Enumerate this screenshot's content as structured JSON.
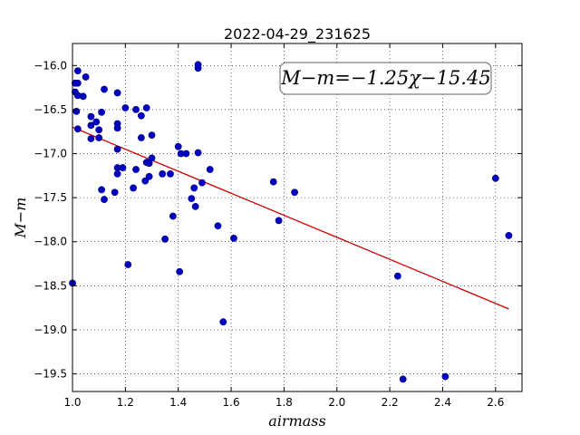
{
  "chart_data": {
    "type": "scatter",
    "title": "2022-04-29_231625",
    "xlabel": "airmass",
    "ylabel": "M−m",
    "annotation": "M−m=−1.25χ−15.45",
    "xlim": [
      1.0,
      2.7
    ],
    "ylim": [
      -19.7,
      -15.75
    ],
    "y_inverted": true,
    "grid": true,
    "grid_style": "dotted",
    "annotation_position": "top-right",
    "x_ticks": [
      1.0,
      1.2,
      1.4,
      1.6,
      1.8,
      2.0,
      2.2,
      2.4,
      2.6
    ],
    "x_tick_labels": [
      "1.0",
      "1.2",
      "1.4",
      "1.6",
      "1.8",
      "2.0",
      "2.2",
      "2.4",
      "2.6"
    ],
    "y_ticks": [
      -16.0,
      -16.5,
      -17.0,
      -17.5,
      -18.0,
      -18.5,
      -19.0,
      -19.5
    ],
    "y_tick_labels": [
      "−16.0",
      "−16.5",
      "−17.0",
      "−17.5",
      "−18.0",
      "−18.5",
      "−19.0",
      "−19.5"
    ],
    "series": [
      {
        "kind": "points",
        "color": "#0000bf",
        "points": [
          [
            1.0,
            -18.47
          ],
          [
            1.01,
            -16.2
          ],
          [
            1.01,
            -16.3
          ],
          [
            1.015,
            -16.52
          ],
          [
            1.02,
            -16.06
          ],
          [
            1.02,
            -16.2
          ],
          [
            1.02,
            -16.34
          ],
          [
            1.02,
            -16.72
          ],
          [
            1.04,
            -16.35
          ],
          [
            1.05,
            -16.13
          ],
          [
            1.07,
            -16.58
          ],
          [
            1.07,
            -16.68
          ],
          [
            1.07,
            -16.83
          ],
          [
            1.09,
            -16.64
          ],
          [
            1.1,
            -16.73
          ],
          [
            1.1,
            -16.82
          ],
          [
            1.11,
            -16.53
          ],
          [
            1.11,
            -17.41
          ],
          [
            1.12,
            -16.27
          ],
          [
            1.12,
            -17.52
          ],
          [
            1.16,
            -17.44
          ],
          [
            1.17,
            -16.31
          ],
          [
            1.17,
            -16.66
          ],
          [
            1.17,
            -16.71
          ],
          [
            1.17,
            -16.95
          ],
          [
            1.17,
            -17.16
          ],
          [
            1.17,
            -17.23
          ],
          [
            1.19,
            -17.16
          ],
          [
            1.2,
            -16.48
          ],
          [
            1.21,
            -18.26
          ],
          [
            1.23,
            -17.39
          ],
          [
            1.24,
            -16.5
          ],
          [
            1.24,
            -17.18
          ],
          [
            1.26,
            -16.57
          ],
          [
            1.26,
            -16.82
          ],
          [
            1.275,
            -17.31
          ],
          [
            1.28,
            -16.48
          ],
          [
            1.28,
            -17.1
          ],
          [
            1.29,
            -17.11
          ],
          [
            1.29,
            -17.26
          ],
          [
            1.3,
            -16.79
          ],
          [
            1.3,
            -17.05
          ],
          [
            1.34,
            -17.23
          ],
          [
            1.35,
            -17.97
          ],
          [
            1.37,
            -17.23
          ],
          [
            1.38,
            -17.71
          ],
          [
            1.4,
            -16.92
          ],
          [
            1.405,
            -18.34
          ],
          [
            1.41,
            -17.0
          ],
          [
            1.43,
            -17.0
          ],
          [
            1.45,
            -17.51
          ],
          [
            1.46,
            -17.39
          ],
          [
            1.465,
            -17.6
          ],
          [
            1.475,
            -15.99
          ],
          [
            1.475,
            -16.03
          ],
          [
            1.475,
            -16.99
          ],
          [
            1.49,
            -17.33
          ],
          [
            1.52,
            -17.18
          ],
          [
            1.55,
            -17.82
          ],
          [
            1.57,
            -18.91
          ],
          [
            1.61,
            -17.96
          ],
          [
            1.76,
            -17.32
          ],
          [
            1.78,
            -17.76
          ],
          [
            1.84,
            -17.44
          ],
          [
            2.23,
            -18.39
          ],
          [
            2.25,
            -19.56
          ],
          [
            2.41,
            -19.53
          ],
          [
            2.6,
            -17.28
          ],
          [
            2.65,
            -17.93
          ]
        ]
      },
      {
        "kind": "fit-line",
        "color": "#cc0000",
        "points": [
          [
            1.0,
            -16.7
          ],
          [
            2.65,
            -18.7625
          ]
        ]
      }
    ]
  }
}
